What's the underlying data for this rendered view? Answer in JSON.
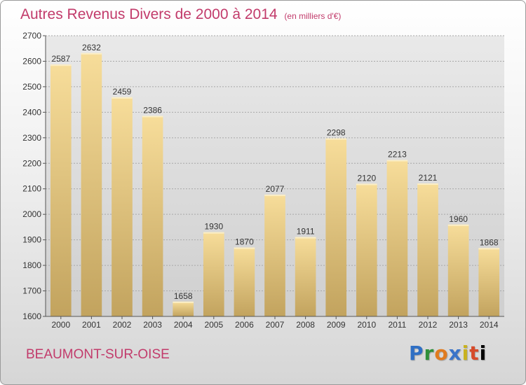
{
  "page": {
    "title": "Autres Revenus Divers de 2000 à 2014",
    "subtitle": "(en milliers d'€)",
    "city": "BEAUMONT-SUR-OISE",
    "logo": "Proxiti",
    "accent_color": "#c23b6b"
  },
  "chart_data": {
    "type": "bar",
    "title": "Autres Revenus Divers de 2000 à 2014",
    "subtitle": "(en milliers d'€)",
    "xlabel": "",
    "ylabel": "",
    "ylim": [
      1600,
      2700
    ],
    "yticks": [
      1600,
      1700,
      1800,
      1900,
      2000,
      2100,
      2200,
      2300,
      2400,
      2500,
      2600,
      2700
    ],
    "grid": true,
    "categories": [
      "2000",
      "2001",
      "2002",
      "2003",
      "2004",
      "2005",
      "2006",
      "2007",
      "2008",
      "2009",
      "2010",
      "2011",
      "2012",
      "2013",
      "2014"
    ],
    "values": [
      2587,
      2632,
      2459,
      2386,
      1658,
      1930,
      1870,
      2077,
      1911,
      2298,
      2120,
      2213,
      2121,
      1960,
      1868
    ],
    "bar_color_top": "#f7dd9a",
    "bar_color_bottom": "#c2a35e"
  }
}
